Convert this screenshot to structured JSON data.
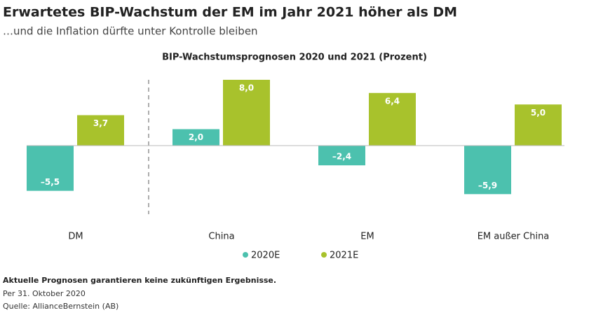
{
  "chart_data": {
    "type": "bar",
    "title": "Erwartetes BIP-Wachstum der EM im Jahr 2021 höher als DM",
    "subtitle": "…und die Inflation dürfte unter Kontrolle bleiben",
    "chart_title": "BIP-Wachstumsprognosen 2020 und 2021 (Prozent)",
    "categories": [
      "DM",
      "China",
      "EM",
      "EM außer China"
    ],
    "series": [
      {
        "name": "2020E",
        "color": "#4cc1ae",
        "values": [
          -5.5,
          2.0,
          -2.4,
          -5.9
        ],
        "value_labels": [
          "–5,5",
          "2,0",
          "–2,4",
          "–5,9"
        ]
      },
      {
        "name": "2021E",
        "color": "#a8c22c",
        "values": [
          3.7,
          8.0,
          6.4,
          5.0
        ],
        "value_labels": [
          "3,7",
          "8,0",
          "6,4",
          "5,0"
        ]
      }
    ]
  },
  "notes": [
    "Aktuelle Prognosen garantieren keine zukünftigen Ergebnisse.",
    "Per 31. Oktober 2020",
    "Quelle: AllianceBernstein (AB)"
  ]
}
